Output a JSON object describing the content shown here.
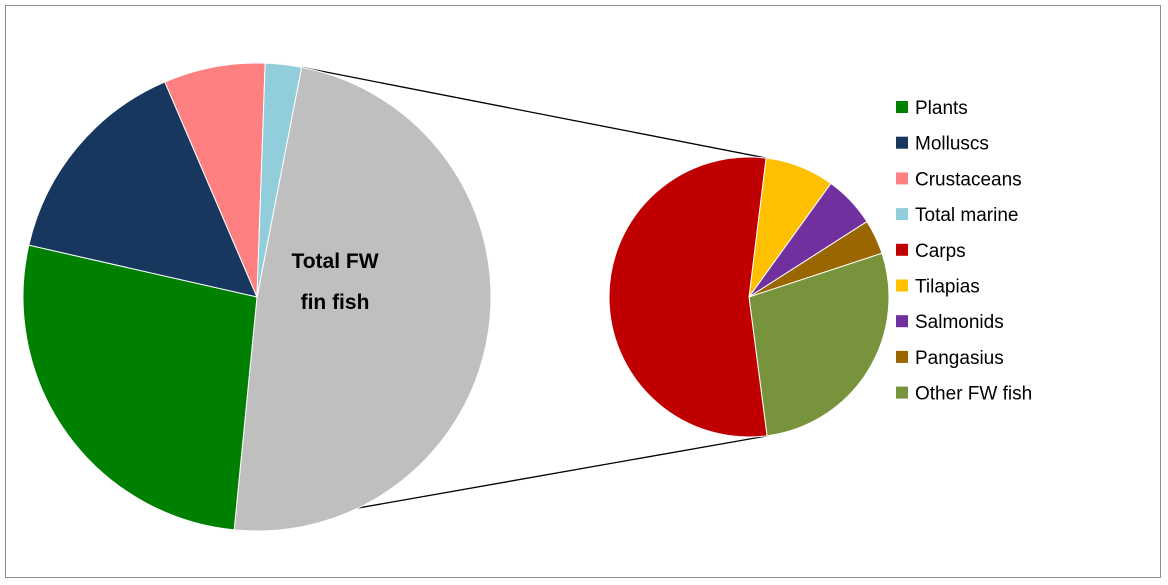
{
  "chart_data": {
    "type": "pie",
    "subtype": "pie-of-pie",
    "main_pie": {
      "slices": [
        {
          "label": "Total FW fin fish",
          "value": 48.5,
          "color": "#BFBFBF"
        },
        {
          "label": "Plants",
          "value": 27.0,
          "color": "#008000"
        },
        {
          "label": "Molluscs",
          "value": 15.0,
          "color": "#17375E"
        },
        {
          "label": "Crustaceans",
          "value": 7.0,
          "color": "#FF8080"
        },
        {
          "label": "Total marine",
          "value": 2.5,
          "color": "#92CDDC"
        }
      ],
      "center_label_lines": [
        "Total FW",
        "fin fish"
      ]
    },
    "secondary_pie": {
      "slices": [
        {
          "label": "Tilapias",
          "value": 8.0,
          "color": "#FFC000"
        },
        {
          "label": "Salmonids",
          "value": 6.0,
          "color": "#7030A0"
        },
        {
          "label": "Pangasius",
          "value": 4.0,
          "color": "#996600"
        },
        {
          "label": "Other FW fish",
          "value": 28.0,
          "color": "#77933C"
        },
        {
          "label": "Carps",
          "value": 54.0,
          "color": "#C00000"
        }
      ]
    },
    "legend": {
      "placement": "right",
      "entries": [
        {
          "label": "Plants",
          "color": "#008000"
        },
        {
          "label": "Molluscs",
          "color": "#17375E"
        },
        {
          "label": "Crustaceans",
          "color": "#FF8080"
        },
        {
          "label": "Total marine",
          "color": "#92CDDC"
        },
        {
          "label": "Carps",
          "color": "#C00000"
        },
        {
          "label": "Tilapias",
          "color": "#FFC000"
        },
        {
          "label": "Salmonids",
          "color": "#7030A0"
        },
        {
          "label": "Pangasius",
          "color": "#996600"
        },
        {
          "label": "Other FW fish",
          "color": "#77933C"
        }
      ]
    }
  }
}
